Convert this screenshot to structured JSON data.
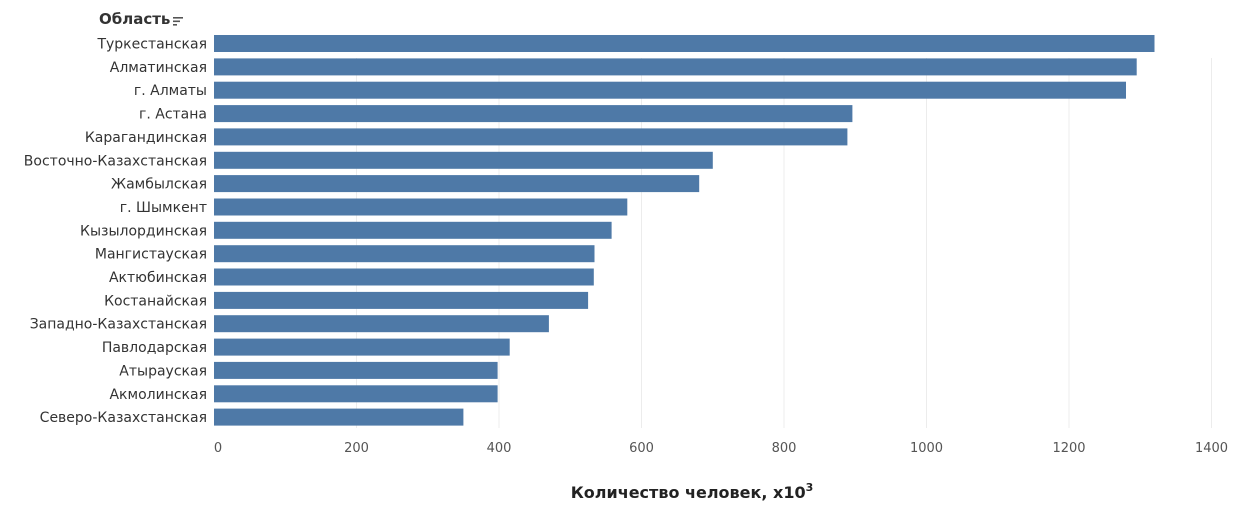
{
  "chart_data": {
    "type": "bar",
    "orientation": "horizontal",
    "category_header": "Область",
    "categories": [
      "Туркестанская",
      "Алматинская",
      "г. Алматы",
      "г. Астана",
      "Карагандинская",
      "Восточно-Казахстанская",
      "Жамбылская",
      "г. Шымкент",
      "Кызылординская",
      "Мангистауская",
      "Актюбинская",
      "Костанайская",
      "Западно-Казахстанская",
      "Павлодарская",
      "Атырауская",
      "Акмолинская",
      "Северо-Казахстанская"
    ],
    "values": [
      1320,
      1295,
      1280,
      896,
      889,
      700,
      681,
      580,
      558,
      534,
      533,
      525,
      470,
      415,
      398,
      398,
      350
    ],
    "xlabel_text": "Количество человек, x10",
    "xlabel_sup": "3",
    "xlim": [
      0,
      1450
    ],
    "xticks": [
      0,
      200,
      400,
      600,
      800,
      1000,
      1200,
      1400
    ],
    "grid": "vertical",
    "bar_color": "#4e79a7"
  }
}
